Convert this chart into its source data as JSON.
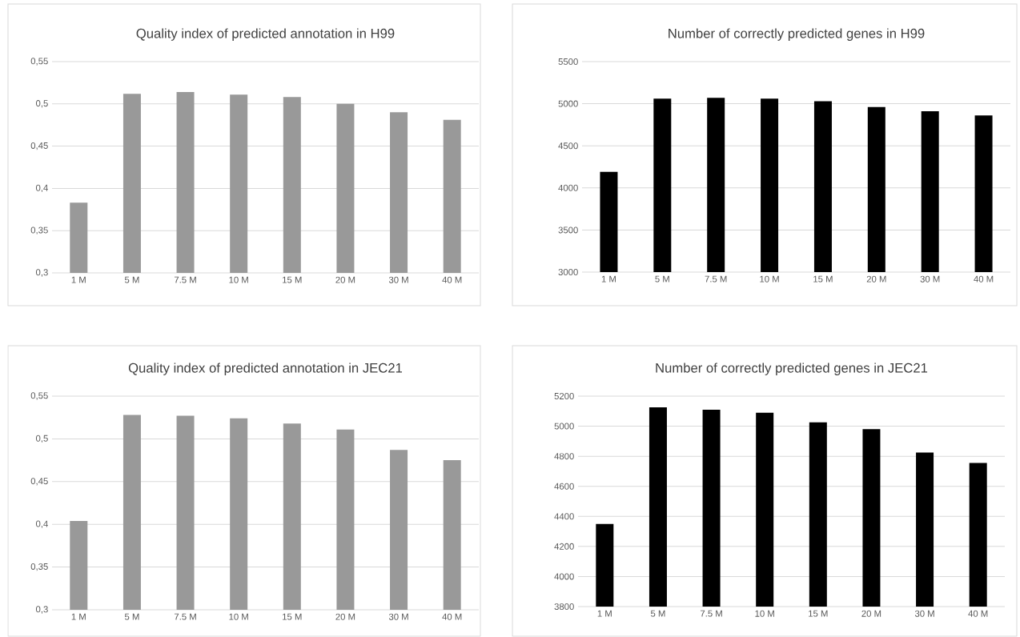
{
  "chart_data": [
    {
      "type": "bar",
      "title": "Quality index of predicted annotation in H99",
      "categories": [
        "1 M",
        "5 M",
        "7.5 M",
        "10 M",
        "15 M",
        "20 M",
        "30 M",
        "40 M"
      ],
      "values": [
        0.383,
        0.512,
        0.514,
        0.511,
        0.508,
        0.5,
        0.49,
        0.481
      ],
      "color": "#999999",
      "ylim": [
        0.3,
        0.55
      ],
      "yticks": [
        {
          "value": 0.3,
          "label": "0,3"
        },
        {
          "value": 0.35,
          "label": "0,35"
        },
        {
          "value": 0.4,
          "label": "0,4"
        },
        {
          "value": 0.45,
          "label": "0,45"
        },
        {
          "value": 0.5,
          "label": "0,5"
        },
        {
          "value": 0.55,
          "label": "0,55"
        }
      ],
      "grid": "y"
    },
    {
      "type": "bar",
      "title": "Number of correctly predicted genes in H99",
      "categories": [
        "1 M",
        "5 M",
        "7.5 M",
        "10 M",
        "15 M",
        "20 M",
        "30 M",
        "40 M"
      ],
      "values": [
        4190,
        5060,
        5070,
        5060,
        5030,
        4960,
        4910,
        4860
      ],
      "color": "#000000",
      "ylim": [
        3000,
        5500
      ],
      "yticks": [
        3000,
        3500,
        4000,
        4500,
        5000,
        5500
      ],
      "grid": "y"
    },
    {
      "type": "bar",
      "title": "Quality index of predicted annotation in JEC21",
      "categories": [
        "1 M",
        "5 M",
        "7.5 M",
        "10 M",
        "15 M",
        "20 M",
        "30 M",
        "40 M"
      ],
      "values": [
        0.404,
        0.528,
        0.527,
        0.524,
        0.518,
        0.511,
        0.487,
        0.475
      ],
      "color": "#999999",
      "ylim": [
        0.3,
        0.55
      ],
      "yticks": [
        {
          "value": 0.3,
          "label": "0,3"
        },
        {
          "value": 0.35,
          "label": "0,35"
        },
        {
          "value": 0.4,
          "label": "0,4"
        },
        {
          "value": 0.45,
          "label": "0,45"
        },
        {
          "value": 0.5,
          "label": "0,5"
        },
        {
          "value": 0.55,
          "label": "0,55"
        }
      ],
      "grid": "y"
    },
    {
      "type": "bar",
      "title": "Number of correctly predicted genes in JEC21",
      "categories": [
        "1 M",
        "5 M",
        "7.5 M",
        "10 M",
        "15 M",
        "20 M",
        "30 M",
        "40 M"
      ],
      "values": [
        4350,
        5125,
        5110,
        5090,
        5025,
        4980,
        4825,
        4755
      ],
      "color": "#000000",
      "ylim": [
        3800,
        5200
      ],
      "yticks": [
        3800,
        4000,
        4200,
        4400,
        4600,
        4800,
        5000,
        5200
      ],
      "grid": "y"
    }
  ]
}
